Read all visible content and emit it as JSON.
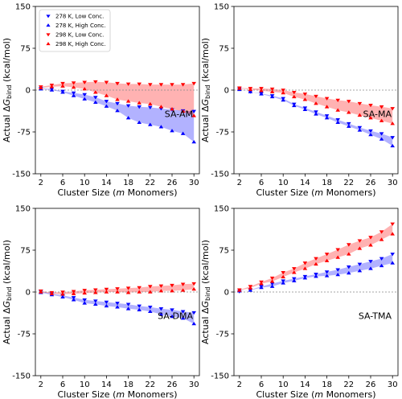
{
  "colors": {
    "low_conc": "#0000ff",
    "high_conc": "#ff0000"
  },
  "legend": [
    {
      "label": "278 K, Low Conc.",
      "marker": "down",
      "color": "#0000ff"
    },
    {
      "label": "278 K, High Conc.",
      "marker": "up",
      "color": "#0000ff"
    },
    {
      "label": "298 K, Low Conc.",
      "marker": "down",
      "color": "#ff0000"
    },
    {
      "label": "298 K, High Conc.",
      "marker": "up",
      "color": "#ff0000"
    }
  ],
  "chart_data": [
    {
      "type": "scatter",
      "panel_label": "SA-AM",
      "xlabel": "Cluster Size (m Monomers)",
      "ylabel": "Actual ΔG_bind (kcal/mol)",
      "xlim": [
        1,
        31
      ],
      "ylim": [
        -150,
        150
      ],
      "xticks": [
        2,
        6,
        10,
        14,
        18,
        22,
        26,
        30
      ],
      "yticks": [
        -150,
        -75,
        0,
        75,
        150
      ],
      "x": [
        2,
        4,
        6,
        8,
        10,
        12,
        14,
        16,
        18,
        20,
        22,
        24,
        26,
        28,
        30
      ],
      "series": [
        {
          "name": "278 K, Low Conc.",
          "values": [
            3,
            2,
            -2,
            -5,
            -8,
            -13,
            -20,
            -24,
            -28,
            -30,
            -31,
            -33,
            -35,
            -37,
            -38
          ]
        },
        {
          "name": "278 K, High Conc.",
          "values": [
            2,
            0,
            -4,
            -10,
            -16,
            -22,
            -29,
            -37,
            -50,
            -58,
            -62,
            -66,
            -73,
            -78,
            -93
          ]
        },
        {
          "name": "298 K, Low Conc.",
          "values": [
            6,
            9,
            12,
            13,
            14,
            15,
            14,
            12,
            11,
            11,
            10,
            10,
            10,
            10,
            12
          ]
        },
        {
          "name": "298 K, High Conc.",
          "values": [
            4,
            6,
            7,
            5,
            2,
            -4,
            -10,
            -17,
            -20,
            -23,
            -25,
            -30,
            -34,
            -38,
            -46
          ]
        }
      ]
    },
    {
      "type": "scatter",
      "panel_label": "SA-MA",
      "xlabel": "Cluster Size (m Monomers)",
      "ylabel": "Actual ΔG_bind (kcal/mol)",
      "xlim": [
        1,
        31
      ],
      "ylim": [
        -150,
        150
      ],
      "xticks": [
        2,
        6,
        10,
        14,
        18,
        22,
        26,
        30
      ],
      "yticks": [
        -150,
        -75,
        0,
        75,
        150
      ],
      "x": [
        2,
        4,
        6,
        8,
        10,
        12,
        14,
        16,
        18,
        20,
        22,
        24,
        26,
        28,
        30
      ],
      "series": [
        {
          "name": "278 K, Low Conc.",
          "values": [
            2,
            -3,
            -6,
            -10,
            -15,
            -25,
            -32,
            -39,
            -46,
            -53,
            -60,
            -67,
            -73,
            -78,
            -85
          ]
        },
        {
          "name": "278 K, High Conc.",
          "values": [
            1,
            -3,
            -7,
            -12,
            -18,
            -28,
            -35,
            -43,
            -50,
            -58,
            -65,
            -72,
            -80,
            -88,
            -100
          ]
        },
        {
          "name": "298 K, Low Conc.",
          "values": [
            4,
            3,
            3,
            2,
            0,
            -4,
            -7,
            -11,
            -15,
            -18,
            -20,
            -24,
            -27,
            -30,
            -33
          ]
        },
        {
          "name": "298 K, High Conc.",
          "values": [
            3,
            1,
            -1,
            -3,
            -5,
            -12,
            -17,
            -24,
            -30,
            -36,
            -40,
            -45,
            -50,
            -55,
            -60
          ]
        }
      ]
    },
    {
      "type": "scatter",
      "panel_label": "SA-DMA",
      "xlabel": "Cluster Size (m Monomers)",
      "ylabel": "Actual ΔG_bind (kcal/mol)",
      "xlim": [
        1,
        31
      ],
      "ylim": [
        -150,
        150
      ],
      "xticks": [
        2,
        6,
        10,
        14,
        18,
        22,
        26,
        30
      ],
      "yticks": [
        -150,
        -75,
        0,
        75,
        150
      ],
      "x": [
        2,
        4,
        6,
        8,
        10,
        12,
        14,
        16,
        18,
        20,
        22,
        24,
        26,
        28,
        30
      ],
      "series": [
        {
          "name": "278 K, Low Conc.",
          "values": [
            1,
            -3,
            -6,
            -10,
            -14,
            -16,
            -18,
            -20,
            -22,
            -25,
            -27,
            -30,
            -32,
            -35,
            -37
          ]
        },
        {
          "name": "278 K, High Conc.",
          "values": [
            -1,
            -5,
            -9,
            -14,
            -20,
            -22,
            -25,
            -27,
            -30,
            -32,
            -35,
            -40,
            -44,
            -47,
            -57
          ]
        },
        {
          "name": "298 K, Low Conc.",
          "values": [
            2,
            -1,
            0,
            1,
            3,
            4,
            5,
            6,
            7,
            8,
            10,
            11,
            12,
            14,
            15
          ]
        },
        {
          "name": "298 K, High Conc.",
          "values": [
            0,
            -3,
            -4,
            -3,
            -2,
            -1,
            0,
            0,
            -1,
            0,
            0,
            2,
            2,
            3,
            5
          ]
        }
      ]
    },
    {
      "type": "scatter",
      "panel_label": "SA-TMA",
      "xlabel": "Cluster Size (m Monomers)",
      "ylabel": "Actual ΔG_bind (kcal/mol)",
      "xlim": [
        1,
        31
      ],
      "ylim": [
        -150,
        150
      ],
      "xticks": [
        2,
        6,
        10,
        14,
        18,
        22,
        26,
        30
      ],
      "yticks": [
        -150,
        -75,
        0,
        75,
        150
      ],
      "x": [
        2,
        4,
        6,
        8,
        10,
        12,
        14,
        16,
        18,
        20,
        22,
        24,
        26,
        28,
        30
      ],
      "series": [
        {
          "name": "278 K, Low Conc.",
          "values": [
            1,
            4,
            10,
            15,
            20,
            24,
            28,
            32,
            36,
            40,
            45,
            50,
            55,
            60,
            68
          ]
        },
        {
          "name": "278 K, High Conc.",
          "values": [
            2,
            3,
            8,
            10,
            16,
            20,
            25,
            28,
            29,
            31,
            34,
            38,
            42,
            47,
            52
          ]
        },
        {
          "name": "298 K, Low Conc.",
          "values": [
            4,
            10,
            18,
            25,
            35,
            42,
            52,
            60,
            68,
            76,
            85,
            92,
            98,
            108,
            122
          ]
        },
        {
          "name": "298 K, High Conc.",
          "values": [
            3,
            7,
            15,
            19,
            27,
            35,
            42,
            50,
            56,
            62,
            68,
            78,
            84,
            94,
            104
          ]
        }
      ]
    }
  ]
}
